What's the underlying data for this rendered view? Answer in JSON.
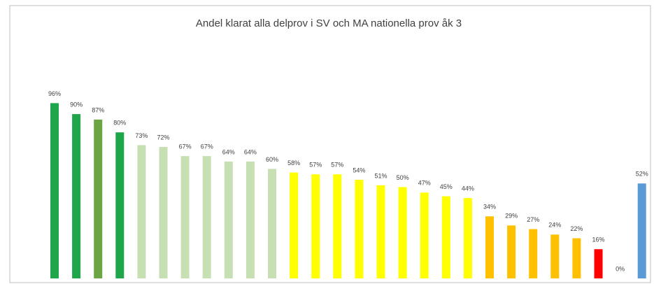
{
  "chart_data": {
    "type": "bar",
    "title": "Andel klarat alla delprov i SV och MA nationella prov åk 3",
    "values": [
      96,
      90,
      87,
      80,
      73,
      72,
      67,
      67,
      64,
      64,
      60,
      58,
      57,
      57,
      54,
      51,
      50,
      47,
      45,
      44,
      34,
      29,
      27,
      24,
      22,
      16,
      0,
      52
    ],
    "value_labels": [
      "96%",
      "90%",
      "87%",
      "80%",
      "73%",
      "72%",
      "67%",
      "67%",
      "64%",
      "64%",
      "60%",
      "58%",
      "57%",
      "57%",
      "54%",
      "51%",
      "50%",
      "47%",
      "45%",
      "44%",
      "34%",
      "29%",
      "27%",
      "24%",
      "22%",
      "16%",
      "0%",
      "52%"
    ],
    "colors": [
      "#1fa64a",
      "#1fa64a",
      "#6aa443",
      "#1fa64a",
      "#c6e0b4",
      "#c6e0b4",
      "#c6e0b4",
      "#c6e0b4",
      "#c6e0b4",
      "#c6e0b4",
      "#c6e0b4",
      "#ffff00",
      "#ffff00",
      "#ffff00",
      "#ffff00",
      "#ffff00",
      "#ffff00",
      "#ffff00",
      "#ffff00",
      "#ffff00",
      "#ffc000",
      "#ffc000",
      "#ffc000",
      "#ffc000",
      "#ffc000",
      "#ff0000",
      "#ffc000",
      "#5b9bd5"
    ],
    "ylim": [
      0,
      100
    ]
  }
}
